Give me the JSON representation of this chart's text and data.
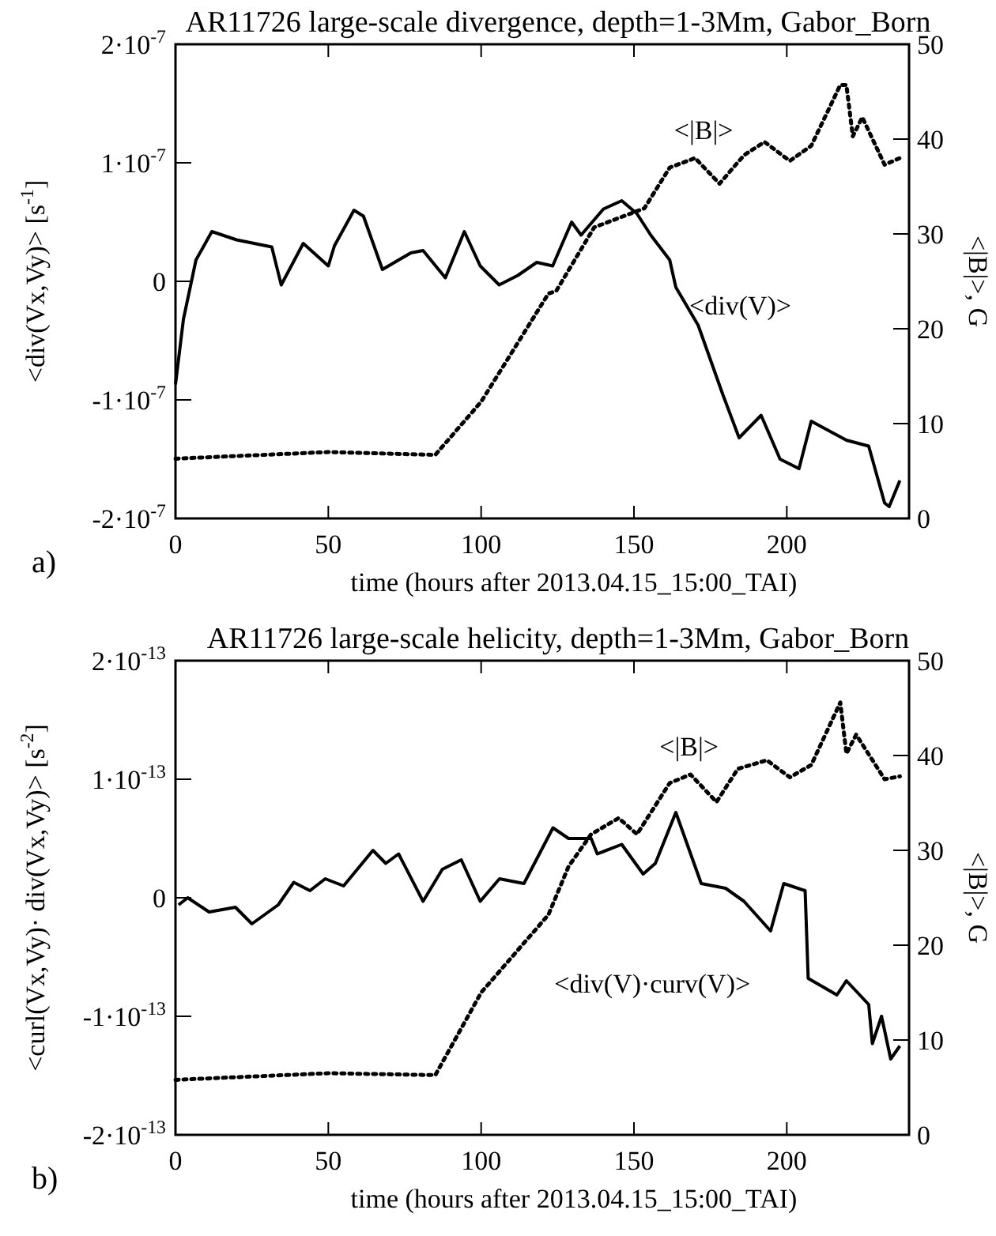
{
  "chart_data": [
    {
      "type": "line",
      "title": "AR11726 large-scale divergence, depth=1-3Mm, Gabor_Born",
      "xlabel": "time (hours after 2013.04.15_15:00_TAI)",
      "ylabel": "<div(Vx,Vy)> [s$^{-1}$]",
      "y2label": "<|B|>, G",
      "annotations": [
        "a)"
      ],
      "xlim": [
        0,
        240
      ],
      "xticks": [
        0,
        50,
        100,
        150,
        200
      ],
      "ylim": [
        -2e-07,
        2e-07
      ],
      "yticks": [
        {
          "value": -2e-07,
          "label": "-2·10$^{-7}$"
        },
        {
          "value": -1e-07,
          "label": "-1·10$^{-7}$"
        },
        0,
        {
          "value": 1e-07,
          "label": "1·10$^{-7}$"
        },
        {
          "value": 2e-07,
          "label": "2·10$^{-7}$"
        }
      ],
      "y2lim": [
        0,
        50
      ],
      "y2ticks": [
        0,
        10,
        20,
        30,
        40,
        50
      ],
      "grid": false,
      "marker": "none",
      "series": [
        {
          "name": "<div(V)>",
          "color": "#000000",
          "line_style": "solid",
          "x": [
            0,
            2.6,
            6.7,
            11.9,
            20,
            31.5,
            34.6,
            41.8,
            50,
            52,
            58.4,
            61.5,
            67.7,
            77,
            81,
            88.3,
            94.5,
            99.7,
            105.9,
            112,
            118.2,
            123.4,
            129.6,
            132.7,
            140,
            146,
            151,
            155.5,
            161.7,
            163.7,
            171,
            179,
            184.4,
            191.6,
            197.8,
            204,
            208,
            219.5,
            226.8,
            232,
            233.5,
            237
          ],
          "values": [
            -8.7e-08,
            -3.2e-08,
            1.8e-08,
            4.2e-08,
            3.5e-08,
            2.9e-08,
            -3e-09,
            3.2e-08,
            1.3e-08,
            3e-08,
            6e-08,
            5.5e-08,
            1e-08,
            2.4e-08,
            2.6e-08,
            3e-09,
            4.2e-08,
            1.3e-08,
            -3e-09,
            5e-09,
            1.6e-08,
            1.3e-08,
            5e-08,
            3.9e-08,
            6.1e-08,
            6.8e-08,
            5.7e-08,
            3.9e-08,
            1.8e-08,
            -5e-09,
            -3.7e-08,
            -9.5e-08,
            -1.32e-07,
            -1.13e-07,
            -1.5e-07,
            -1.58e-07,
            -1.18e-07,
            -1.34e-07,
            -1.39e-07,
            -1.87e-07,
            -1.9e-07,
            -1.68e-07
          ]
        },
        {
          "name": "<|B|>",
          "color": "#000000",
          "line_style": "dotted",
          "axis": "y2",
          "x": [
            0,
            50,
            85,
            100,
            122,
            124.6,
            137,
            153.4,
            161.7,
            170,
            178,
            186,
            192.7,
            201,
            208,
            217.5,
            219.5,
            221.6,
            224.7,
            232,
            237
          ],
          "values": [
            6.3,
            7,
            6.7,
            12.3,
            23.7,
            24,
            30.7,
            32.7,
            37,
            38,
            35.3,
            38.3,
            39.7,
            37.7,
            39.3,
            45.7,
            45.7,
            40.3,
            42.3,
            37.3,
            38
          ]
        }
      ]
    },
    {
      "type": "line",
      "title": "AR11726 large-scale helicity, depth=1-3Mm, Gabor_Born",
      "xlabel": "time (hours after 2013.04.15_15:00_TAI)",
      "ylabel": "<curl(Vx,Vy)· div(Vx,Vy)> [s$^{-2}$]",
      "y2label": "<|B|>, G",
      "annotations": [
        "b)"
      ],
      "xlim": [
        0,
        240
      ],
      "xticks": [
        0,
        50,
        100,
        150,
        200
      ],
      "ylim": [
        -2e-13,
        2e-13
      ],
      "yticks": [
        {
          "value": -2e-13,
          "label": "-2·10$^{-13}$"
        },
        {
          "value": -1e-13,
          "label": "-1·10$^{-13}$"
        },
        0,
        {
          "value": 1e-13,
          "label": "1·10$^{-13}$"
        },
        {
          "value": 2e-13,
          "label": "2·10$^{-13}$"
        }
      ],
      "y2lim": [
        0,
        50
      ],
      "y2ticks": [
        0,
        10,
        20,
        30,
        40,
        50
      ],
      "grid": false,
      "marker": "none",
      "series": [
        {
          "name": "<div(V)·curv(V)>",
          "color": "#000000",
          "line_style": "solid",
          "x": [
            1,
            4,
            11,
            19.6,
            25,
            33.6,
            38.7,
            44,
            49,
            55,
            64.6,
            68.8,
            73,
            81,
            87.3,
            93.5,
            99.7,
            106,
            114,
            123.5,
            128.6,
            136,
            138,
            146,
            153,
            157,
            163.7,
            172,
            180,
            186,
            194.7,
            199,
            206,
            207,
            216.4,
            219.5,
            226.8,
            228,
            231,
            234,
            237
          ],
          "values": [
            -6e-15,
            0,
            -1.2e-14,
            -8e-15,
            -2.2e-14,
            -6e-15,
            1.3e-14,
            6e-15,
            1.6e-14,
            1e-14,
            4e-14,
            2.9e-14,
            3.7e-14,
            -3e-15,
            2.4e-14,
            3.2e-14,
            -3e-15,
            1.6e-14,
            1.2e-14,
            5.9e-14,
            5e-14,
            5e-14,
            3.7e-14,
            4.5e-14,
            2e-14,
            2.9e-14,
            7.2e-14,
            1.2e-14,
            8e-15,
            -3e-15,
            -2.8e-14,
            1.2e-14,
            6e-15,
            -6.8e-14,
            -8.2e-14,
            -7e-14,
            -9e-14,
            -1.23e-13,
            -1e-13,
            -1.36e-13,
            -1.25e-13
          ]
        },
        {
          "name": "<|B|>",
          "color": "#000000",
          "line_style": "dotted",
          "axis": "y2",
          "x": [
            0,
            50,
            85,
            100,
            122,
            128.6,
            136,
            145,
            151,
            161.7,
            168.5,
            177,
            184,
            193.5,
            201,
            208,
            217.5,
            219.5,
            222.7,
            232,
            237
          ],
          "values": [
            5.8,
            6.5,
            6.3,
            15,
            23.2,
            28.3,
            31.7,
            33.4,
            31.7,
            37.1,
            38,
            35.1,
            38.6,
            39.5,
            37.7,
            39,
            45.6,
            40.2,
            42.2,
            37.5,
            37.8
          ]
        }
      ]
    }
  ]
}
